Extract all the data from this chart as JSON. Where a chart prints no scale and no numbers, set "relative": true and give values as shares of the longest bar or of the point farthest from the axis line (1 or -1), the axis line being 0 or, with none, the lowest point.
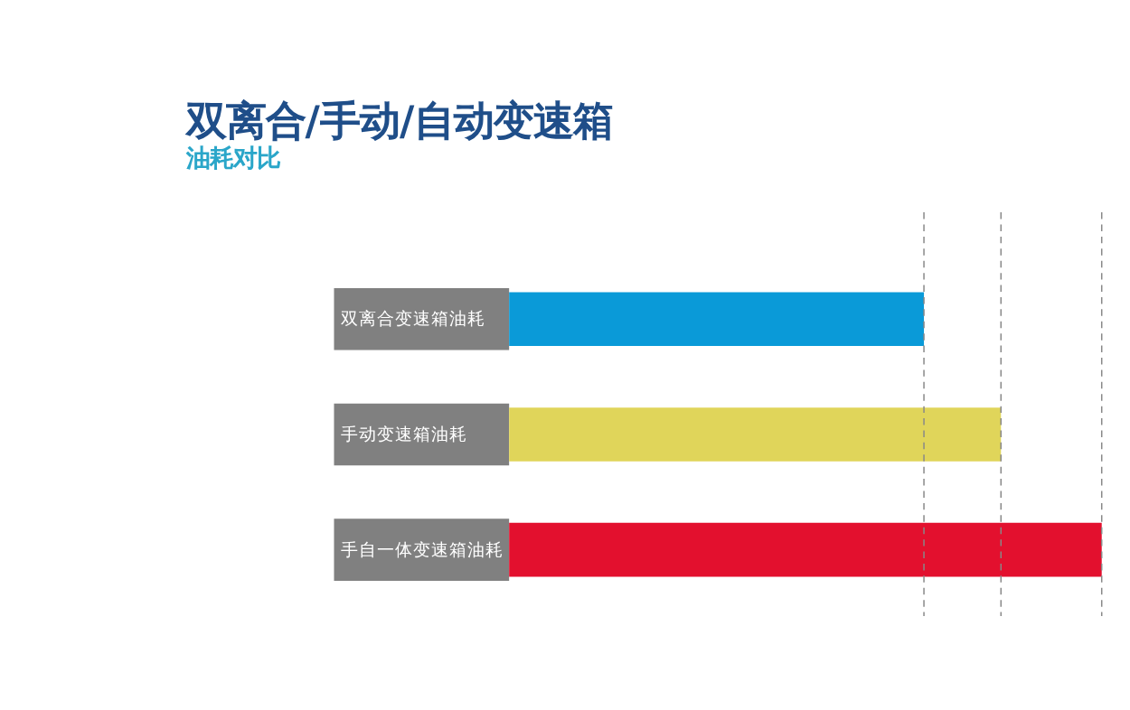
{
  "chart_data": {
    "type": "bar",
    "orientation": "horizontal",
    "relative": true,
    "title": "双离合/手动/自动变速箱",
    "subtitle": "油耗对比",
    "categories": [
      "双离合变速箱油耗",
      "手动变速箱油耗",
      "手自一体变速箱油耗"
    ],
    "values": [
      0.7,
      0.83,
      1
    ],
    "colors": [
      "#0a9ad8",
      "#e0d55a",
      "#e3102e"
    ],
    "ref_lines": [
      {
        "axis": "x",
        "value": 0.7,
        "label": null,
        "color": "#888888",
        "line_style": "dashed"
      },
      {
        "axis": "x",
        "value": 0.83,
        "label": null,
        "color": "#888888",
        "line_style": "dashed"
      },
      {
        "axis": "x",
        "value": 1,
        "label": null,
        "color": "#888888",
        "line_style": "dashed"
      }
    ]
  }
}
